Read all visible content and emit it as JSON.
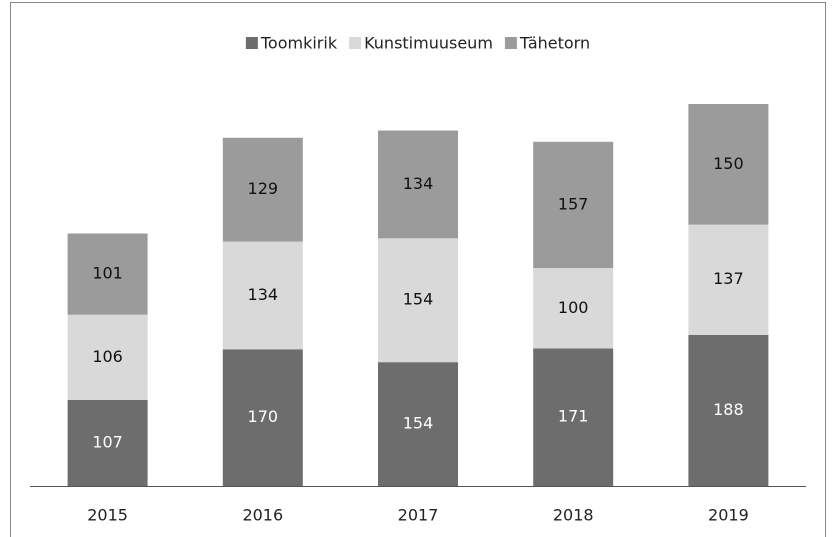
{
  "chart_data": {
    "type": "stacked_bar",
    "categories": [
      "2015",
      "2016",
      "2017",
      "2018",
      "2019"
    ],
    "series": [
      {
        "name": "Toomkirik",
        "color": "#6d6d6d",
        "values": [
          107,
          170,
          154,
          171,
          188
        ]
      },
      {
        "name": "Kunstimuuseum",
        "color": "#d9d9d9",
        "values": [
          106,
          134,
          154,
          100,
          137
        ]
      },
      {
        "name": "Tähetorn",
        "color": "#9b9b9b",
        "values": [
          101,
          129,
          134,
          157,
          150
        ]
      }
    ],
    "legend": "top"
  }
}
